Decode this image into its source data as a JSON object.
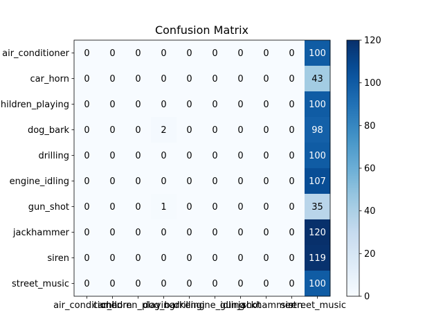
{
  "chart_data": {
    "type": "heatmap",
    "title": "Confusion Matrix",
    "xlabel": "",
    "ylabel": "",
    "row_labels": [
      "air_conditioner",
      "car_horn",
      "children_playing",
      "dog_bark",
      "drilling",
      "engine_idling",
      "gun_shot",
      "jackhammer",
      "siren",
      "street_music"
    ],
    "col_labels": [
      "air_conditioner",
      "car_horn",
      "children_playing",
      "dog_bark",
      "drilling",
      "engine_idling",
      "gun_shot",
      "jackhammer",
      "siren",
      "street_music"
    ],
    "values": [
      [
        0,
        0,
        0,
        0,
        0,
        0,
        0,
        0,
        0,
        100
      ],
      [
        0,
        0,
        0,
        0,
        0,
        0,
        0,
        0,
        0,
        43
      ],
      [
        0,
        0,
        0,
        0,
        0,
        0,
        0,
        0,
        0,
        100
      ],
      [
        0,
        0,
        0,
        2,
        0,
        0,
        0,
        0,
        0,
        98
      ],
      [
        0,
        0,
        0,
        0,
        0,
        0,
        0,
        0,
        0,
        100
      ],
      [
        0,
        0,
        0,
        0,
        0,
        0,
        0,
        0,
        0,
        107
      ],
      [
        0,
        0,
        0,
        1,
        0,
        0,
        0,
        0,
        0,
        35
      ],
      [
        0,
        0,
        0,
        0,
        0,
        0,
        0,
        0,
        0,
        120
      ],
      [
        0,
        0,
        0,
        0,
        0,
        0,
        0,
        0,
        0,
        119
      ],
      [
        0,
        0,
        0,
        0,
        0,
        0,
        0,
        0,
        0,
        100
      ]
    ],
    "colormap": "Blues",
    "colorbar": {
      "range": [
        0,
        120
      ],
      "ticks": [
        0,
        20,
        40,
        60,
        80,
        100,
        120
      ]
    },
    "grid": false
  }
}
